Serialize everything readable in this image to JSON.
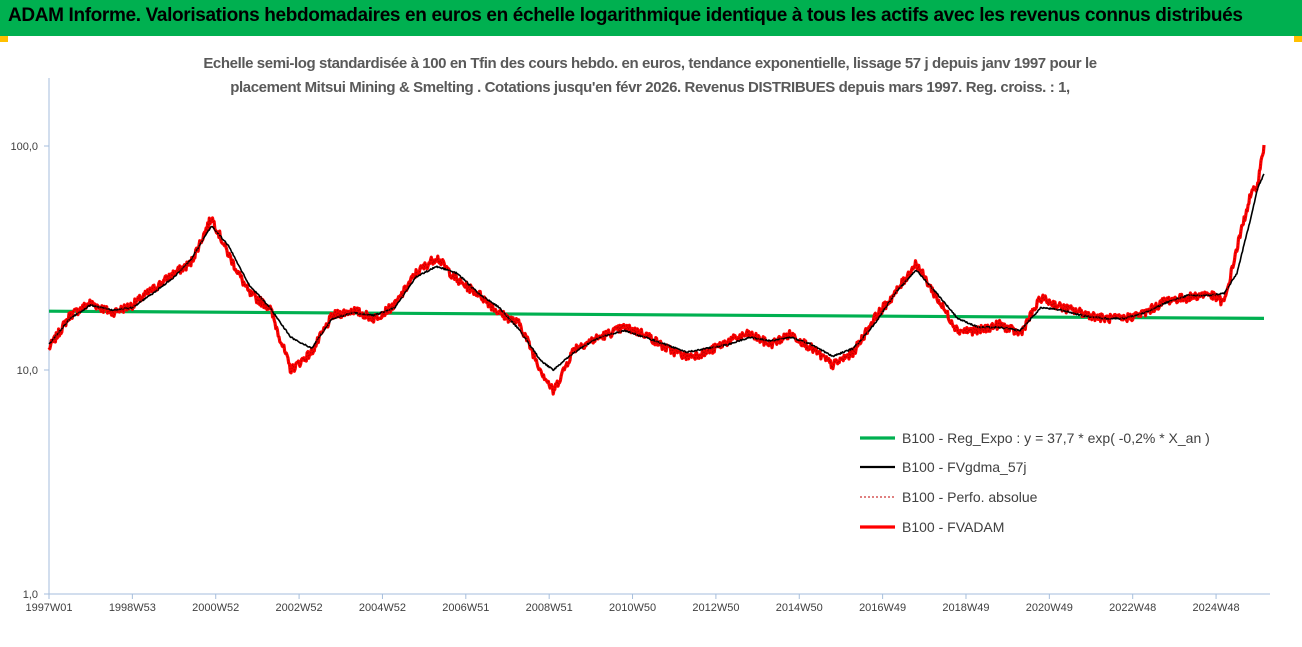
{
  "header": {
    "title": "ADAM Informe. Valorisations hebdomadaires en euros en échelle logarithmique identique à tous les actifs avec les revenus connus distribués",
    "background": "#00b050"
  },
  "chart_data": {
    "type": "line",
    "title": "",
    "subtitle_lines": [
      "Echelle semi-log standardisée à 100 en Tfin des cours hebdo. en euros, tendance exponentielle, lissage 57 j depuis janv 1997 pour le",
      "placement Mitsui Mining & Smelting . Cotations jusqu'en févr 2026. Revenus DISTRIBUES depuis mars 1997. Reg. croiss. : 1,"
    ],
    "y_scale": "log",
    "ylim": [
      1,
      100
    ],
    "y_ticks": [
      "100,0",
      "10,0",
      "1,0"
    ],
    "y_tick_values": [
      100,
      10,
      1
    ],
    "x_ticks": [
      "1997W01",
      "1998W53",
      "2000W52",
      "2002W52",
      "2004W52",
      "2006W51",
      "2008W51",
      "2010W50",
      "2012W50",
      "2014W50",
      "2016W49",
      "2018W49",
      "2020W49",
      "2022W48",
      "2024W48"
    ],
    "x_tick_years": [
      1997.0,
      1999.0,
      2001.0,
      2003.0,
      2005.0,
      2007.0,
      2009.0,
      2011.0,
      2013.0,
      2015.0,
      2017.0,
      2019.0,
      2021.0,
      2023.0,
      2025.0
    ],
    "xlim": [
      1997.0,
      2026.15
    ],
    "grid": false,
    "legend_position": "bottom-right",
    "series": [
      {
        "name": "B100 - Reg_Expo : y = 37,7 * exp( -0,2% *  X_an )",
        "color": "#00b050",
        "style": "solid-thick",
        "x": [
          1997.0,
          2026.15
        ],
        "values": [
          18.3,
          17.0
        ]
      },
      {
        "name": "B100 - FVgdma_57j",
        "color": "#000000",
        "style": "solid-thin",
        "x": [
          1997.0,
          1997.5,
          1998.0,
          1998.5,
          1999.0,
          1999.5,
          2000.0,
          2000.4,
          2000.9,
          2001.3,
          2001.8,
          2002.3,
          2002.8,
          2003.3,
          2003.8,
          2004.3,
          2004.8,
          2005.3,
          2005.8,
          2006.3,
          2006.8,
          2007.3,
          2007.8,
          2008.3,
          2008.8,
          2009.1,
          2009.6,
          2010.2,
          2010.8,
          2011.3,
          2011.8,
          2012.3,
          2012.8,
          2013.3,
          2013.8,
          2014.3,
          2014.8,
          2015.3,
          2015.8,
          2016.3,
          2016.8,
          2017.3,
          2017.8,
          2018.3,
          2018.8,
          2019.3,
          2019.8,
          2020.3,
          2020.8,
          2021.3,
          2021.8,
          2022.3,
          2022.8,
          2023.3,
          2023.8,
          2024.3,
          2024.8,
          2025.2,
          2025.5,
          2025.8,
          2026.0,
          2026.15
        ],
        "values": [
          13,
          17,
          19.5,
          18.5,
          19,
          22,
          26,
          31,
          44,
          36,
          24,
          19,
          14,
          12.5,
          17,
          18,
          17.5,
          19,
          26,
          29,
          27,
          22,
          19,
          15,
          11,
          10,
          12,
          14,
          15,
          14,
          13,
          12,
          12.5,
          13,
          14,
          13.5,
          14,
          13,
          11.5,
          12.5,
          16,
          22,
          28,
          22,
          17,
          15.5,
          15.5,
          15,
          19,
          18.5,
          17.5,
          17,
          17,
          18,
          20,
          21.5,
          21.5,
          22,
          27,
          45,
          65,
          75
        ]
      },
      {
        "name": "B100 - Perfo. absolue",
        "color": "#c00000",
        "style": "dotted",
        "x": [
          1997.0,
          1997.5,
          1998.0,
          1998.5,
          1999.0,
          1999.5,
          2000.0,
          2000.4,
          2000.9,
          2001.3,
          2001.8,
          2002.3,
          2002.8,
          2003.3,
          2003.8,
          2004.3,
          2004.8,
          2005.3,
          2005.8,
          2006.3,
          2006.8,
          2007.3,
          2007.8,
          2008.3,
          2008.8,
          2009.1,
          2009.6,
          2010.2,
          2010.8,
          2011.3,
          2011.8,
          2012.3,
          2012.8,
          2013.3,
          2013.8,
          2014.3,
          2014.8,
          2015.3,
          2015.8,
          2016.3,
          2016.8,
          2017.3,
          2017.8,
          2018.3,
          2018.8,
          2019.3,
          2019.8,
          2020.3,
          2020.8,
          2021.3,
          2021.8,
          2022.3,
          2022.8,
          2023.3,
          2023.8,
          2024.3,
          2024.8,
          2025.2,
          2025.5,
          2025.8,
          2026.0,
          2026.15
        ],
        "values": [
          12.5,
          17.5,
          20,
          18,
          19.5,
          23,
          27,
          30,
          48,
          33,
          22,
          19,
          10,
          12,
          17.5,
          18.5,
          17,
          19.5,
          27,
          32,
          25,
          22,
          18,
          16,
          10,
          8,
          12.5,
          14,
          15.5,
          14.5,
          12.5,
          11.5,
          12,
          13.5,
          14.5,
          13,
          14.5,
          12.5,
          10.5,
          12,
          17,
          22,
          30,
          21,
          15,
          15,
          16,
          14.5,
          21,
          19,
          18,
          17,
          17,
          18,
          20.5,
          21,
          22,
          20,
          35,
          58,
          68,
          101
        ]
      },
      {
        "name": "B100 - FVADAM",
        "color": "#ff0000",
        "style": "solid-thick",
        "x": [
          1997.0,
          1997.5,
          1998.0,
          1998.5,
          1999.0,
          1999.5,
          2000.0,
          2000.4,
          2000.9,
          2001.3,
          2001.8,
          2002.3,
          2002.8,
          2003.3,
          2003.8,
          2004.3,
          2004.8,
          2005.3,
          2005.8,
          2006.3,
          2006.8,
          2007.3,
          2007.8,
          2008.3,
          2008.8,
          2009.1,
          2009.6,
          2010.2,
          2010.8,
          2011.3,
          2011.8,
          2012.3,
          2012.8,
          2013.3,
          2013.8,
          2014.3,
          2014.8,
          2015.3,
          2015.8,
          2016.3,
          2016.8,
          2017.3,
          2017.8,
          2018.3,
          2018.8,
          2019.3,
          2019.8,
          2020.3,
          2020.8,
          2021.3,
          2021.8,
          2022.3,
          2022.8,
          2023.3,
          2023.8,
          2024.3,
          2024.8,
          2025.2,
          2025.5,
          2025.8,
          2026.0,
          2026.15
        ],
        "values": [
          12.5,
          17.5,
          20,
          18,
          19.5,
          23,
          27,
          30,
          48,
          33,
          22,
          19,
          10,
          12,
          17.5,
          18.5,
          17,
          19.5,
          27,
          32,
          25,
          22,
          18,
          16,
          10,
          8,
          12.5,
          14,
          15.5,
          14.5,
          12.5,
          11.5,
          12,
          13.5,
          14.5,
          13,
          14.5,
          12.5,
          10.5,
          12,
          17,
          22,
          30,
          21,
          15,
          15,
          16,
          14.5,
          21,
          19,
          18,
          17,
          17,
          18,
          20.5,
          21,
          22,
          20,
          35,
          58,
          68,
          101
        ]
      }
    ]
  }
}
